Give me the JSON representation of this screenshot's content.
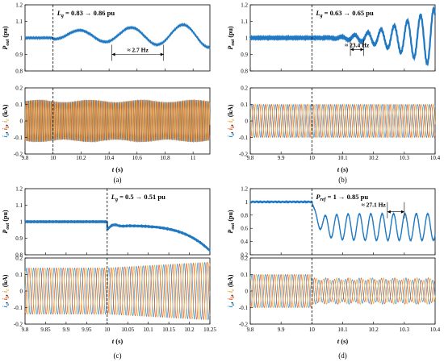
{
  "chart_data": [
    {
      "type": "line",
      "panel_label": "(a)",
      "annotation": "L_g = 0.83 → 0.86 pu",
      "annotation_parts": {
        "symbol": "L",
        "sub": "g",
        "text": " = 0.83 → 0.86 pu"
      },
      "event_time": 10.0,
      "top": {
        "ylabel": "P",
        "ylabel_sub": "out",
        "ylabel_unit": "(pu)",
        "ylim": [
          0.8,
          1.2
        ],
        "yticks": [
          0.8,
          0.9,
          1.0,
          1.1,
          1.2
        ],
        "series": [
          {
            "kind": "power",
            "base": 1.0,
            "osc_amp_max": 0.07,
            "osc_freq_hz": 2.7
          }
        ],
        "freq_label": "≈ 2.7 Hz",
        "freq_marker_x": [
          10.42,
          10.79
        ],
        "freq_marker_y": 0.9
      },
      "bottom": {
        "ylabel_parts": [
          "i",
          "a",
          "i",
          "b",
          "i",
          "c"
        ],
        "ylabel_unit": "(kA)",
        "ylim": [
          -0.2,
          0.2
        ],
        "yticks": [
          -0.2,
          -0.1,
          0,
          0.1,
          0.2
        ],
        "series_colors": [
          "#2b8ccf",
          "#e0561f",
          "#e8a93a"
        ],
        "amplitude": 0.12
      },
      "xlabel": "t",
      "xlabel_unit": "(s)",
      "xlim": [
        9.8,
        11.12
      ],
      "xticks": [
        "9.8",
        "10",
        "10.2",
        "10.4",
        "10.6",
        "10.8",
        "11"
      ],
      "xtick_values": [
        9.8,
        10.0,
        10.2,
        10.4,
        10.6,
        10.8,
        11.0
      ]
    },
    {
      "type": "line",
      "panel_label": "(b)",
      "annotation": "L_g = 0.63 → 0.65 pu",
      "annotation_parts": {
        "symbol": "L",
        "sub": "g",
        "text": " = 0.63 → 0.65 pu"
      },
      "event_time": 10.0,
      "top": {
        "ylabel": "P",
        "ylabel_sub": "out",
        "ylabel_unit": "(pu)",
        "ylim": [
          0.8,
          1.2
        ],
        "yticks": [
          0.8,
          0.9,
          1.0,
          1.1,
          1.2
        ],
        "series": [
          {
            "kind": "power",
            "base": 1.0,
            "osc_amp_max": 0.18,
            "osc_freq_hz": 23.4
          }
        ],
        "freq_label": "≈ 23.4 Hz",
        "freq_marker_x": [
          10.125,
          10.168
        ],
        "freq_marker_y": 0.93
      },
      "bottom": {
        "ylabel_parts": [
          "i",
          "a",
          "i",
          "b",
          "i",
          "c"
        ],
        "ylabel_unit": "(kA)",
        "ylim": [
          -0.2,
          0.2
        ],
        "yticks": [
          -0.2,
          -0.1,
          0,
          0.1,
          0.2
        ],
        "series_colors": [
          "#2b8ccf",
          "#e0561f",
          "#e8a93a"
        ],
        "amplitude": 0.1
      },
      "xlabel": "t",
      "xlabel_unit": "(s)",
      "xlim": [
        9.8,
        10.4
      ],
      "xticks": [
        "9.8",
        "9.9",
        "10",
        "10.1",
        "10.2",
        "10.3",
        "10.4"
      ],
      "xtick_values": [
        9.8,
        9.9,
        10.0,
        10.1,
        10.2,
        10.3,
        10.4
      ]
    },
    {
      "type": "line",
      "panel_label": "(c)",
      "annotation": "L_g = 0.5 → 0.51 pu",
      "annotation_parts": {
        "symbol": "L",
        "sub": "g",
        "text": " = 0.5 → 0.51 pu"
      },
      "event_time": 10.0,
      "top": {
        "ylabel": "P",
        "ylabel_sub": "out",
        "ylabel_unit": "(pu)",
        "ylim": [
          0.8,
          1.2
        ],
        "yticks": [
          0.8,
          0.9,
          1.0,
          1.1,
          1.2
        ],
        "series": [
          {
            "kind": "power_decay",
            "base": 1.0,
            "final": 0.83
          }
        ],
        "freq_label": "",
        "freq_marker_x": [],
        "freq_marker_y": null
      },
      "bottom": {
        "ylabel_parts": [
          "i",
          "a",
          "i",
          "b",
          "i",
          "c"
        ],
        "ylabel_unit": "(kA)",
        "ylim": [
          -0.2,
          0.2
        ],
        "yticks": [
          -0.2,
          -0.1,
          0,
          0.1,
          0.2
        ],
        "series_colors": [
          "#2b8ccf",
          "#e0561f",
          "#e8a93a"
        ],
        "amplitude": 0.14
      },
      "xlabel": "t",
      "xlabel_unit": "(s)",
      "xlim": [
        9.8,
        10.25
      ],
      "xticks": [
        "9.8",
        "9.85",
        "9.9",
        "9.95",
        "10",
        "10.05",
        "10.1",
        "10.15",
        "10.2",
        "10.25"
      ],
      "xtick_values": [
        9.8,
        9.85,
        9.9,
        9.95,
        10.0,
        10.05,
        10.1,
        10.15,
        10.2,
        10.25
      ]
    },
    {
      "type": "line",
      "panel_label": "(d)",
      "annotation": "P_ref = 1 → 0.85 pu",
      "annotation_parts": {
        "symbol": "P",
        "sub": "ref",
        "text": " = 1 → 0.85 pu"
      },
      "event_time": 10.0,
      "top": {
        "ylabel": "P",
        "ylabel_sub": "out",
        "ylabel_unit": "(pu)",
        "ylim": [
          0.2,
          1.2
        ],
        "yticks": [
          0.2,
          0.4,
          0.6,
          0.8,
          1.0,
          1.2
        ],
        "series": [
          {
            "kind": "power_drop",
            "base": 1.0,
            "center": 0.62,
            "osc_amp": 0.2,
            "osc_freq_hz": 27.1
          }
        ],
        "freq_label": "≈ 27.1 Hz",
        "freq_marker_x": [
          10.245,
          10.3
        ],
        "freq_marker_y": 0.85
      },
      "bottom": {
        "ylabel_parts": [
          "i",
          "a",
          "i",
          "b",
          "i",
          "c"
        ],
        "ylabel_unit": "(kA)",
        "ylim": [
          -0.2,
          0.2
        ],
        "yticks": [
          -0.2,
          -0.1,
          0,
          0.1,
          0.2
        ],
        "series_colors": [
          "#2b8ccf",
          "#e0561f",
          "#e8a93a"
        ],
        "amplitude": 0.1
      },
      "xlabel": "t",
      "xlabel_unit": "(s)",
      "xlim": [
        9.8,
        10.4
      ],
      "xticks": [
        "9.8",
        "9.9",
        "10",
        "10.1",
        "10.2",
        "10.3",
        "10.4"
      ],
      "xtick_values": [
        9.8,
        9.9,
        10.0,
        10.1,
        10.2,
        10.3,
        10.4
      ]
    }
  ]
}
